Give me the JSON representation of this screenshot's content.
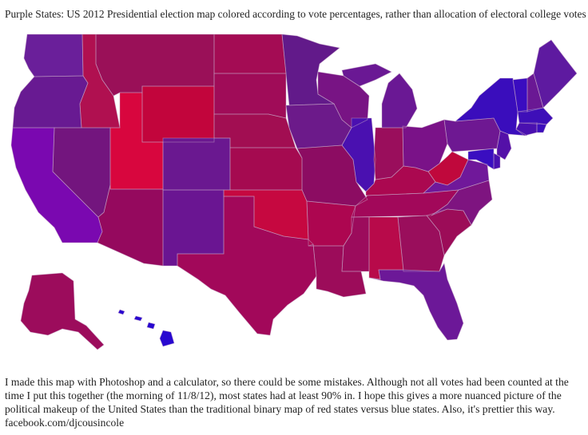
{
  "title": "Purple States: US 2012 Presidential election map colored according to vote percentages, rather than allocation of electoral college votes",
  "caption_lines": [
    "I made this map with Photoshop and a calculator, so there could be some mistakes. Although not all votes had been counted at the",
    "time I put this together (the morning of 11/8/12), most states had at least 90% in. I hope this gives a more nuanced picture of the",
    "political makeup of the United States than the traditional binary map of red states versus blue states. Also, it's prettier this way.",
    "facebook.com/djcousincole"
  ],
  "colors": {
    "red": "#d2003a",
    "blue": "#2a05c8",
    "background": "#ffffff"
  },
  "states": {
    "WA": "#6a1f9a",
    "OR": "#681a92",
    "CA": "#7a08b0",
    "NV": "#73157e",
    "ID": "#b01050",
    "MT": "#9a1058",
    "WY": "#c2053c",
    "UT": "#d8063e",
    "AZ": "#95095e",
    "CO": "#6a1890",
    "NM": "#6a1592",
    "ND": "#a40c54",
    "SD": "#a00c58",
    "NE": "#a20e52",
    "KS": "#a50a50",
    "OK": "#c60840",
    "TX": "#a2085a",
    "MN": "#621a8a",
    "IA": "#6c1a8a",
    "MO": "#8c0c62",
    "AR": "#ad0650",
    "LA": "#9c0c5a",
    "WI": "#781484",
    "IL": "#4a10b0",
    "MI": "#6a1894",
    "IN": "#9a0e5c",
    "OH": "#7a1288",
    "KY": "#ab0850",
    "TN": "#a2085a",
    "MS": "#9c0b5c",
    "AL": "#b80a4a",
    "GA": "#9a0e5c",
    "FL": "#6c1898",
    "SC": "#9c0c58",
    "NC": "#7e1480",
    "VA": "#70189a",
    "WV": "#c0083c",
    "PA": "#6e1892",
    "NY": "#3a0dbc",
    "VT": "#3a0cc0",
    "NH": "#6a1894",
    "ME": "#5e1aa0",
    "MA": "#3e0fb8",
    "CT": "#4a10b0",
    "RI": "#3c0ebc",
    "NJ": "#5410a8",
    "DE": "#4a10b0",
    "MD": "#3a0ec0",
    "AK": "#9c0c5c",
    "HI": "#2808d0"
  }
}
